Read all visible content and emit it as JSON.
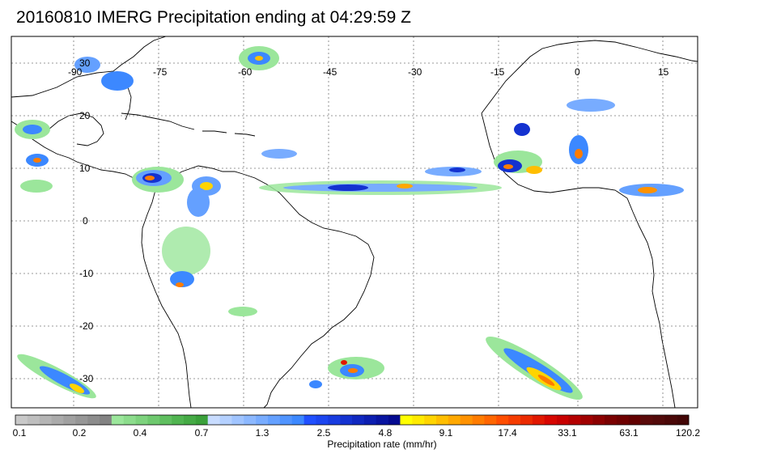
{
  "title": "20160810 IMERG Precipitation ending at 04:29:59 Z",
  "map": {
    "longitude_labels": [
      "-90",
      "-75",
      "-60",
      "-45",
      "-30",
      "-15",
      "0",
      "15"
    ],
    "latitude_labels": [
      "30",
      "20",
      "10",
      "0",
      "-10",
      "-20",
      "-30"
    ]
  },
  "colorbar": {
    "title": "Precipitation rate (mm/hr)",
    "tick_labels": [
      "0.1",
      "0.2",
      "0.4",
      "0.7",
      "1.3",
      "2.5",
      "4.8",
      "9.1",
      "17.4",
      "33.1",
      "63.1",
      "120.2"
    ],
    "colors": [
      "#c8c8c8",
      "#bebebe",
      "#b4b4b4",
      "#aaaaaa",
      "#a0a0a0",
      "#969696",
      "#8c8c8c",
      "#828282",
      "#9be69b",
      "#8cdc8c",
      "#7dd27d",
      "#6ec86e",
      "#5fbe5f",
      "#50b450",
      "#45aa45",
      "#3aa03a",
      "#c8dcff",
      "#b4d0ff",
      "#a0c4ff",
      "#8cb8ff",
      "#78acff",
      "#64a0ff",
      "#5094ff",
      "#3c88ff",
      "#2050ff",
      "#1c46f0",
      "#183ce0",
      "#1432d0",
      "#1028c0",
      "#0c1eb0",
      "#0814a0",
      "#040a90",
      "#ffff00",
      "#ffea00",
      "#ffd400",
      "#ffbe00",
      "#ffa800",
      "#ff9200",
      "#ff7c00",
      "#ff6600",
      "#ff4e00",
      "#f53c00",
      "#eb2a00",
      "#e11800",
      "#d70600",
      "#c80000",
      "#b40000",
      "#a00000",
      "#8c0000",
      "#7a0000",
      "#6e0000",
      "#620000",
      "#5a0a0a",
      "#520a0a",
      "#4a0808",
      "#420606"
    ]
  }
}
